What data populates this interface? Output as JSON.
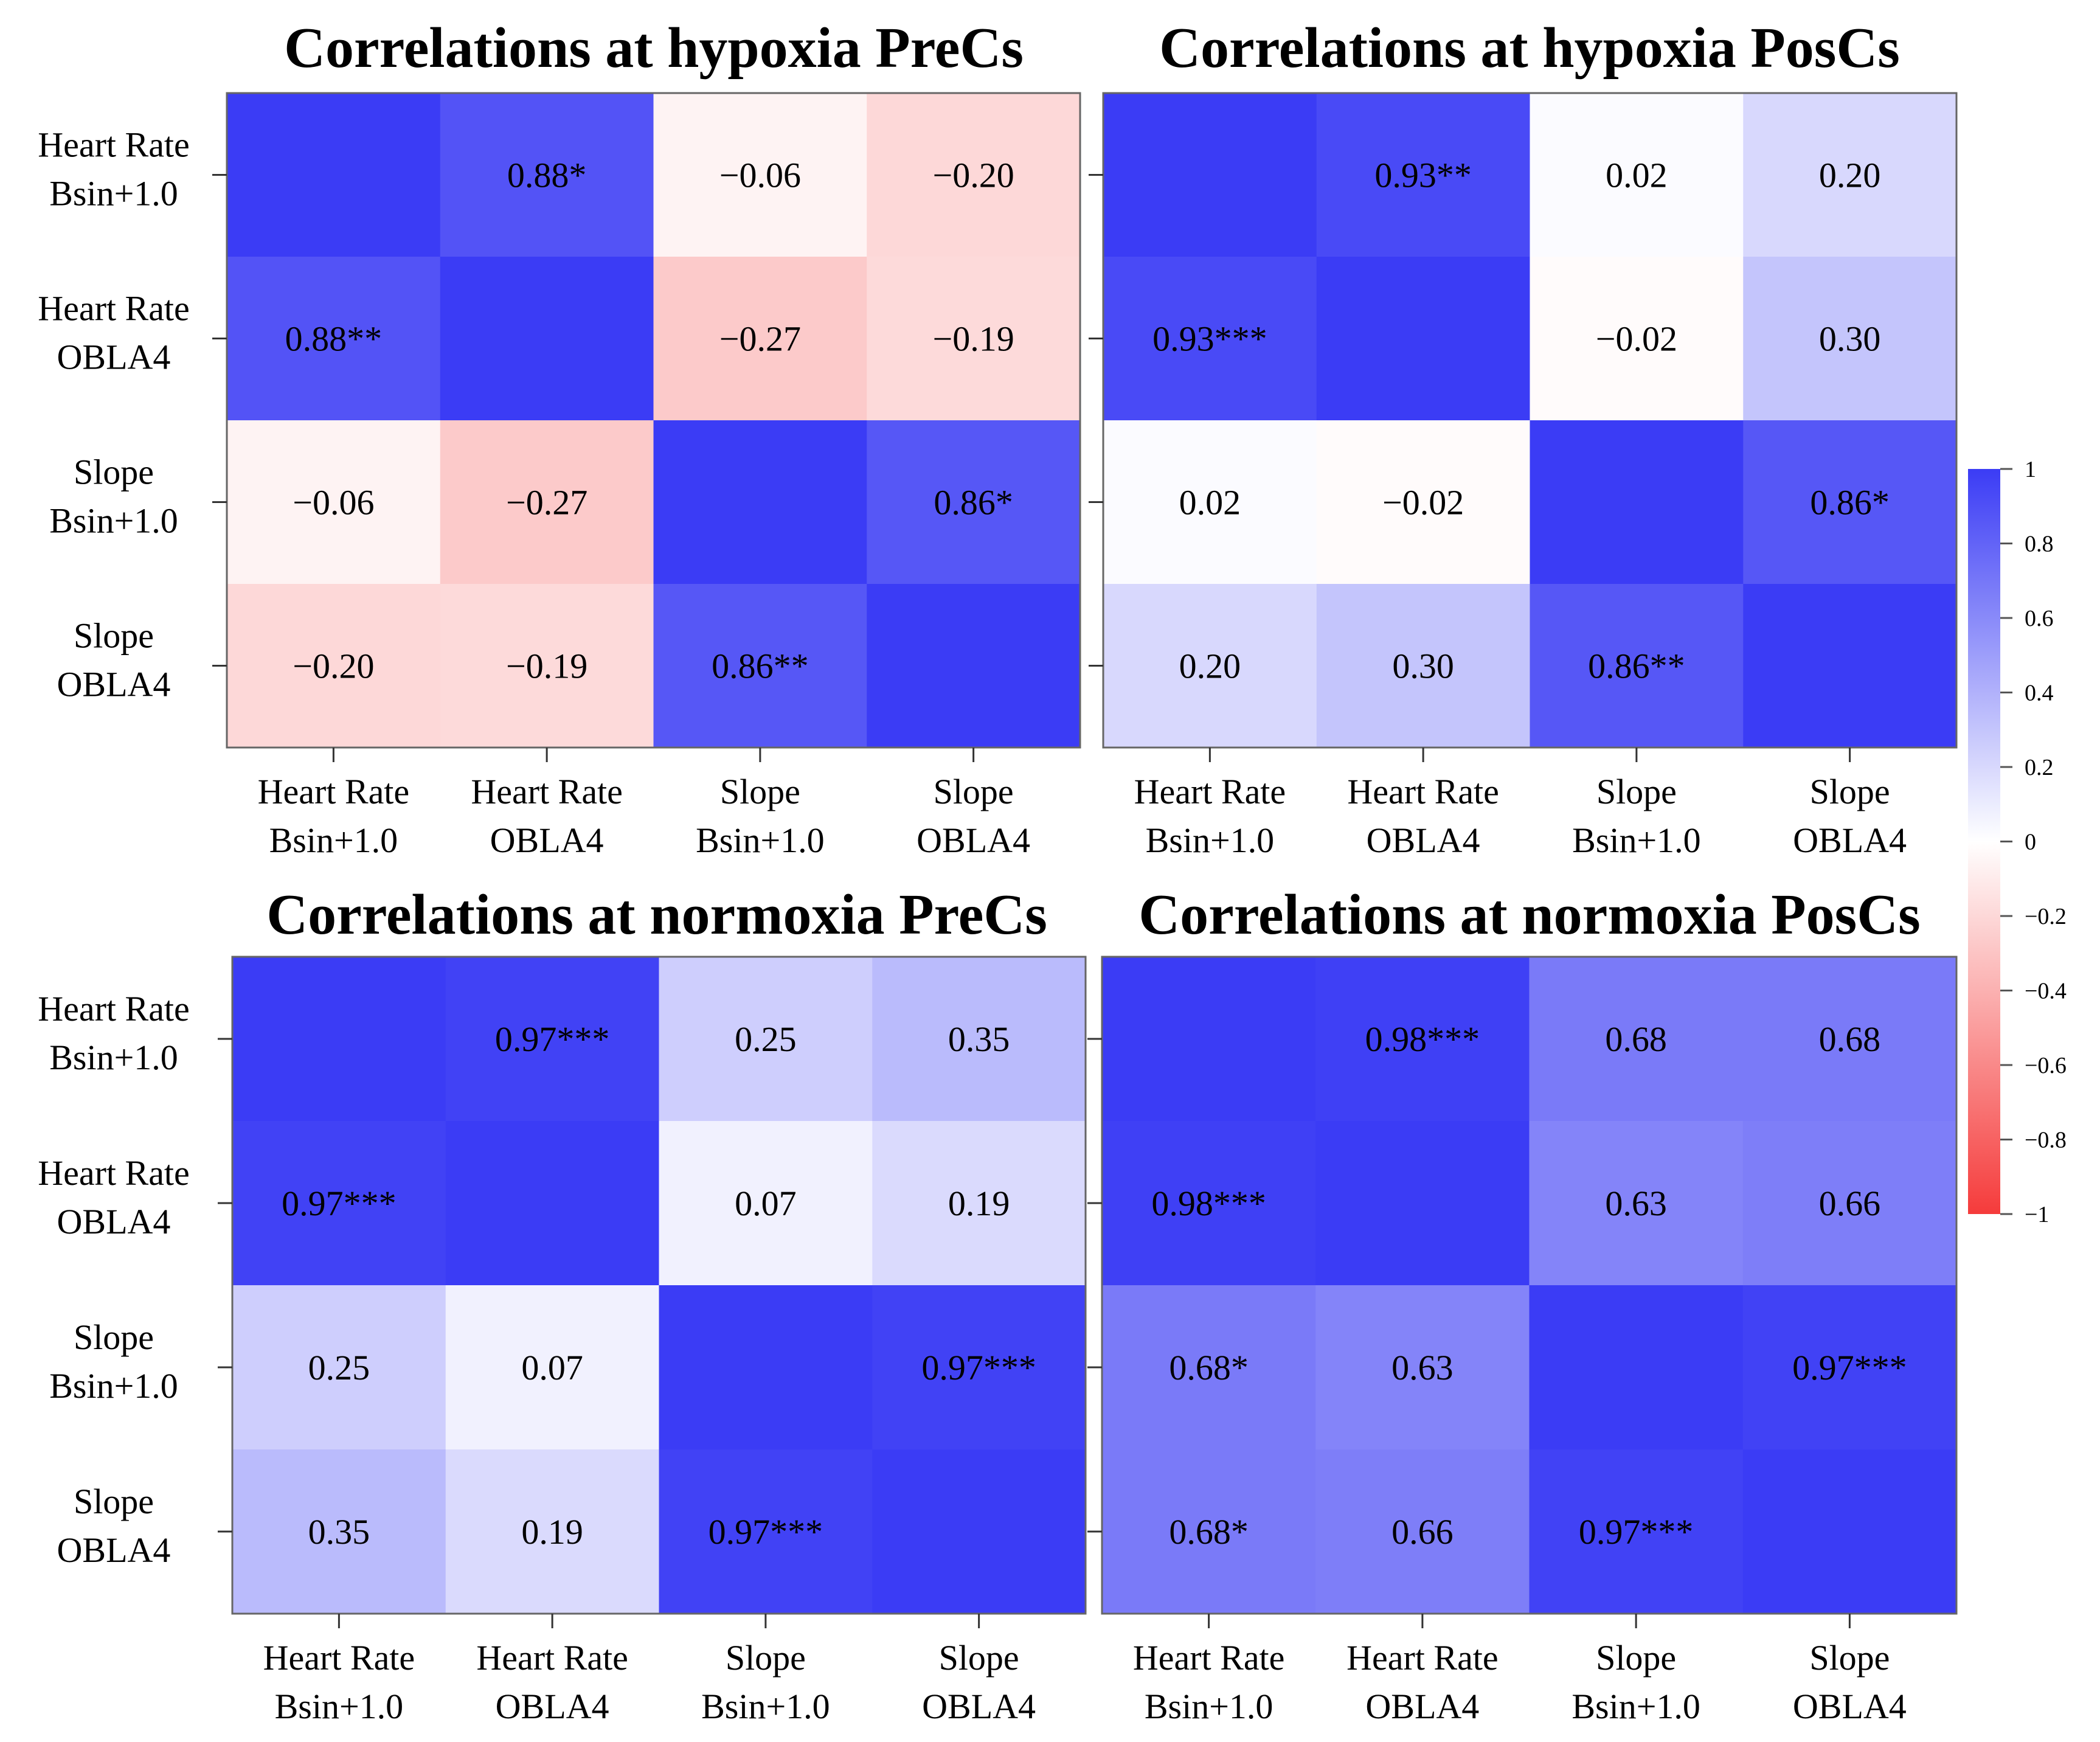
{
  "chart_data": [
    {
      "type": "heatmap",
      "title": "Correlations at hypoxia PreCs",
      "row_labels": [
        [
          "Heart Rate",
          "Bsin+1.0"
        ],
        [
          "Heart Rate",
          "OBLA4"
        ],
        [
          "Slope",
          "Bsin+1.0"
        ],
        [
          "Slope",
          "OBLA4"
        ]
      ],
      "col_labels": [
        [
          "Heart Rate",
          "Bsin+1.0"
        ],
        [
          "Heart Rate",
          "OBLA4"
        ],
        [
          "Slope",
          "Bsin+1.0"
        ],
        [
          "Slope",
          "OBLA4"
        ]
      ],
      "values": [
        [
          1,
          0.88,
          -0.06,
          -0.2
        ],
        [
          0.88,
          1,
          -0.27,
          -0.19
        ],
        [
          -0.06,
          -0.27,
          1,
          0.86
        ],
        [
          -0.2,
          -0.19,
          0.86,
          1
        ]
      ],
      "labels": [
        [
          "",
          "0.88*",
          "−0.06",
          "−0.20"
        ],
        [
          "0.88**",
          "",
          "−0.27",
          "−0.19"
        ],
        [
          "−0.06",
          "−0.27",
          "",
          "0.86*"
        ],
        [
          "−0.20",
          "−0.19",
          "0.86**",
          ""
        ]
      ]
    },
    {
      "type": "heatmap",
      "title": "Correlations at hypoxia PosCs",
      "row_labels": [
        [
          "Heart Rate",
          "Bsin+1.0"
        ],
        [
          "Heart Rate",
          "OBLA4"
        ],
        [
          "Slope",
          "Bsin+1.0"
        ],
        [
          "Slope",
          "OBLA4"
        ]
      ],
      "col_labels": [
        [
          "Heart Rate",
          "Bsin+1.0"
        ],
        [
          "Heart Rate",
          "OBLA4"
        ],
        [
          "Slope",
          "Bsin+1.0"
        ],
        [
          "Slope",
          "OBLA4"
        ]
      ],
      "values": [
        [
          1,
          0.93,
          0.02,
          0.2
        ],
        [
          0.93,
          1,
          -0.02,
          0.3
        ],
        [
          0.02,
          -0.02,
          1,
          0.86
        ],
        [
          0.2,
          0.3,
          0.86,
          1
        ]
      ],
      "labels": [
        [
          "",
          "0.93**",
          "0.02",
          "0.20"
        ],
        [
          "0.93***",
          "",
          "−0.02",
          "0.30"
        ],
        [
          "0.02",
          "−0.02",
          "",
          "0.86*"
        ],
        [
          "0.20",
          "0.30",
          "0.86**",
          ""
        ]
      ]
    },
    {
      "type": "heatmap",
      "title": "Correlations at normoxia PreCs",
      "row_labels": [
        [
          "Heart Rate",
          "Bsin+1.0"
        ],
        [
          "Heart Rate",
          "OBLA4"
        ],
        [
          "Slope",
          "Bsin+1.0"
        ],
        [
          "Slope",
          "OBLA4"
        ]
      ],
      "col_labels": [
        [
          "Heart Rate",
          "Bsin+1.0"
        ],
        [
          "Heart Rate",
          "OBLA4"
        ],
        [
          "Slope",
          "Bsin+1.0"
        ],
        [
          "Slope",
          "OBLA4"
        ]
      ],
      "values": [
        [
          1,
          0.97,
          0.25,
          0.35
        ],
        [
          0.97,
          1,
          0.07,
          0.19
        ],
        [
          0.25,
          0.07,
          1,
          0.97
        ],
        [
          0.35,
          0.19,
          0.97,
          1
        ]
      ],
      "labels": [
        [
          "",
          "0.97***",
          "0.25",
          "0.35"
        ],
        [
          "0.97***",
          "",
          "0.07",
          "0.19"
        ],
        [
          "0.25",
          "0.07",
          "",
          "0.97***"
        ],
        [
          "0.35",
          "0.19",
          "0.97***",
          ""
        ]
      ]
    },
    {
      "type": "heatmap",
      "title": "Correlations at normoxia PosCs",
      "row_labels": [
        [
          "Heart Rate",
          "Bsin+1.0"
        ],
        [
          "Heart Rate",
          "OBLA4"
        ],
        [
          "Slope",
          "Bsin+1.0"
        ],
        [
          "Slope",
          "OBLA4"
        ]
      ],
      "col_labels": [
        [
          "Heart Rate",
          "Bsin+1.0"
        ],
        [
          "Heart Rate",
          "OBLA4"
        ],
        [
          "Slope",
          "Bsin+1.0"
        ],
        [
          "Slope",
          "OBLA4"
        ]
      ],
      "values": [
        [
          1,
          0.98,
          0.68,
          0.68
        ],
        [
          0.98,
          1,
          0.63,
          0.66
        ],
        [
          0.68,
          0.63,
          1,
          0.97
        ],
        [
          0.68,
          0.66,
          0.97,
          1
        ]
      ],
      "labels": [
        [
          "",
          "0.98***",
          "0.68",
          "0.68"
        ],
        [
          "0.98***",
          "",
          "0.63",
          "0.66"
        ],
        [
          "0.68*",
          "0.63",
          "",
          "0.97***"
        ],
        [
          "0.68*",
          "0.66",
          "0.97***",
          ""
        ]
      ]
    }
  ],
  "colorbar": {
    "min": -1,
    "max": 1,
    "ticks": [
      1,
      0.8,
      0.6,
      0.4,
      0.2,
      0,
      -0.2,
      -0.4,
      -0.6,
      -0.8,
      -1
    ],
    "tick_labels": [
      "1",
      "0.8",
      "0.6",
      "0.4",
      "0.2",
      "0",
      "−0.2",
      "−0.4",
      "−0.6",
      "−0.8",
      "−1"
    ],
    "colors": {
      "positive": "#3b3cf5",
      "neutral": "#ffffff",
      "negative": "#f53b3b"
    }
  }
}
